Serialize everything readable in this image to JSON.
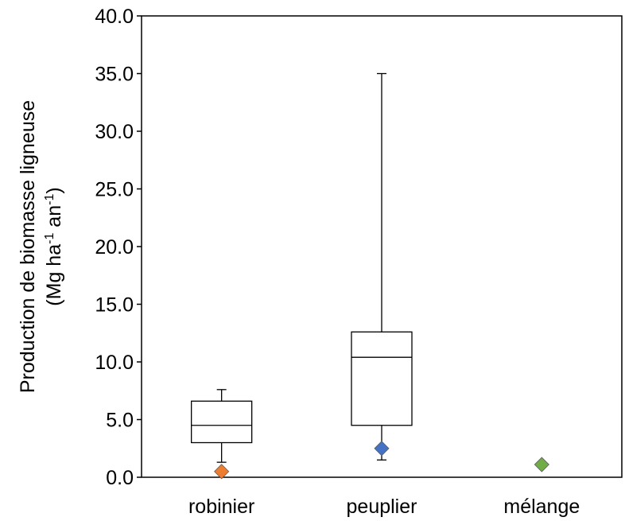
{
  "chart_data": {
    "type": "boxplot",
    "ylabel_line1": "Production de biomasse ligneuse",
    "ylabel_line2_prefix": "(Mg ha",
    "ylabel_line2_sup1": "-1",
    "ylabel_line2_mid": " an",
    "ylabel_line2_sup2": "-1",
    "ylabel_line2_suffix": ")",
    "ylim": [
      0,
      40
    ],
    "yticks": [
      "0.0",
      "5.0",
      "10.0",
      "15.0",
      "20.0",
      "25.0",
      "30.0",
      "35.0",
      "40.0"
    ],
    "grid": false,
    "legend": "none",
    "categories": [
      "robinier",
      "peuplier",
      "mélange"
    ],
    "boxes": [
      {
        "category": "robinier",
        "min": 1.3,
        "q1": 3.0,
        "median": 4.5,
        "q3": 6.6,
        "max": 7.6
      },
      {
        "category": "peuplier",
        "min": 1.5,
        "q1": 4.5,
        "median": 10.4,
        "q3": 12.6,
        "max": 35.0
      },
      {
        "category": "mélange",
        "min": null,
        "q1": null,
        "median": null,
        "q3": null,
        "max": null
      }
    ],
    "points": [
      {
        "category": "robinier",
        "value": 0.5,
        "color": "#ED7D31"
      },
      {
        "category": "peuplier",
        "value": 2.5,
        "color": "#4472C4"
      },
      {
        "category": "mélange",
        "value": 1.1,
        "color": "#70AD47"
      }
    ]
  }
}
